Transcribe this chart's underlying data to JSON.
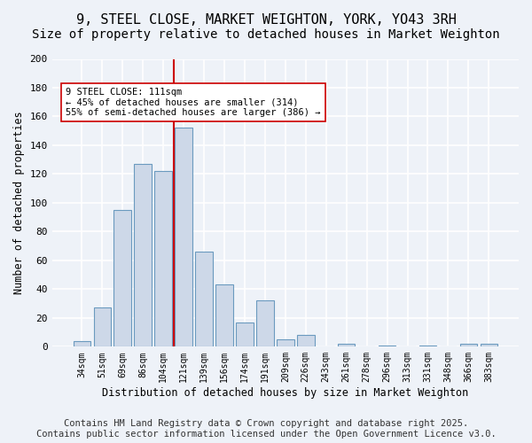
{
  "title_line1": "9, STEEL CLOSE, MARKET WEIGHTON, YORK, YO43 3RH",
  "title_line2": "Size of property relative to detached houses in Market Weighton",
  "xlabel": "Distribution of detached houses by size in Market Weighton",
  "ylabel": "Number of detached properties",
  "categories": [
    "34sqm",
    "51sqm",
    "69sqm",
    "86sqm",
    "104sqm",
    "121sqm",
    "139sqm",
    "156sqm",
    "174sqm",
    "191sqm",
    "209sqm",
    "226sqm",
    "243sqm",
    "261sqm",
    "278sqm",
    "296sqm",
    "313sqm",
    "331sqm",
    "348sqm",
    "366sqm",
    "383sqm"
  ],
  "values": [
    4,
    27,
    95,
    127,
    122,
    152,
    66,
    43,
    17,
    32,
    5,
    8,
    0,
    2,
    0,
    1,
    0,
    1,
    0,
    2,
    2
  ],
  "bar_color": "#cdd8e8",
  "bar_edge_color": "#6b9abf",
  "vline_x_index": 4.5,
  "vline_color": "#cc0000",
  "annotation_text": "9 STEEL CLOSE: 111sqm\n← 45% of detached houses are smaller (314)\n55% of semi-detached houses are larger (386) →",
  "annotation_box_color": "#ffffff",
  "annotation_box_edge": "#cc0000",
  "ylim": [
    0,
    200
  ],
  "yticks": [
    0,
    20,
    40,
    60,
    80,
    100,
    120,
    140,
    160,
    180,
    200
  ],
  "footer_line1": "Contains HM Land Registry data © Crown copyright and database right 2025.",
  "footer_line2": "Contains public sector information licensed under the Open Government Licence v3.0.",
  "bg_color": "#eef2f8",
  "plot_bg_color": "#eef2f8",
  "grid_color": "#ffffff",
  "title_fontsize": 11,
  "subtitle_fontsize": 10,
  "footer_fontsize": 7.5
}
